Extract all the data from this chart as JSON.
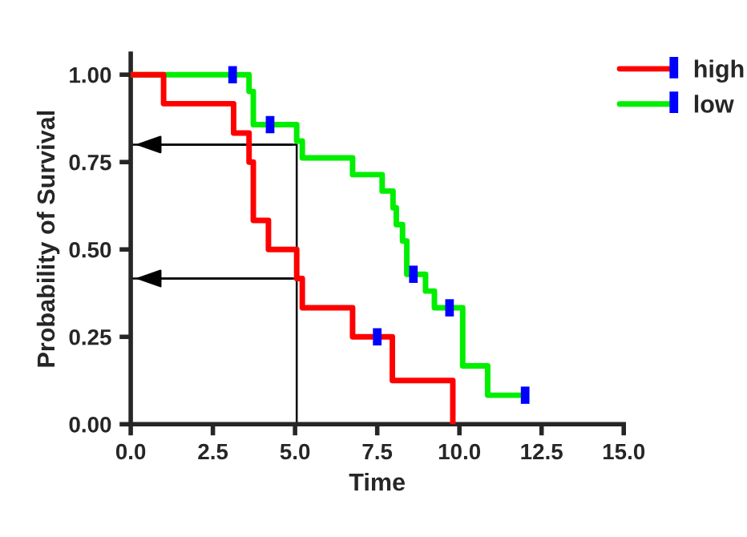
{
  "chart_data": {
    "type": "step",
    "xlabel": "Time",
    "ylabel": "Probability of Survival",
    "xlim": [
      0,
      15
    ],
    "xticks": [
      {
        "value": 0,
        "label": "0.0"
      },
      2.5,
      {
        "value": 5,
        "label": "5.0"
      },
      7.5,
      {
        "value": 10,
        "label": "10.0"
      },
      12.5,
      {
        "value": 15,
        "label": "15.0"
      }
    ],
    "ylim": [
      0,
      1.06
    ],
    "yticks": [
      {
        "value": 0,
        "label": "0.00"
      },
      0.25,
      {
        "value": 0.5,
        "label": "0.50"
      },
      0.75,
      {
        "value": 1,
        "label": "1.00"
      }
    ],
    "grid": false,
    "legend": "top right",
    "series": [
      {
        "name": "high",
        "color": "#ff0000",
        "x": [
          0,
          1,
          3.13,
          3.6,
          3.73,
          4.19,
          5.05,
          5.22,
          6.75,
          7.96,
          9.8
        ],
        "values": [
          1,
          0.917,
          0.833,
          0.75,
          0.583,
          0.5,
          0.417,
          0.333,
          0.25,
          0.125,
          0
        ]
      },
      {
        "name": "low",
        "color": "#00ee00",
        "x": [
          0,
          3.6,
          3.73,
          5.05,
          5.22,
          6.75,
          7.65,
          7.98,
          8.08,
          8.27,
          8.4,
          8.97,
          9.24,
          10.1,
          10.86,
          12.0
        ],
        "values": [
          1,
          0.952,
          0.857,
          0.81,
          0.762,
          0.714,
          0.667,
          0.619,
          0.571,
          0.524,
          0.429,
          0.381,
          0.333,
          0.167,
          0.083,
          0.083
        ]
      },
      {
        "type": "scatter",
        "color": "#0000ff",
        "x": [
          3.1,
          4.24,
          7.5,
          8.6,
          9.7,
          12.0
        ],
        "values": [
          1.0,
          0.857,
          0.25,
          0.429,
          0.333,
          0.083
        ]
      },
      {
        "type": "line",
        "color": "#000000",
        "x": [
          5.05,
          5.05,
          0
        ],
        "values": [
          0,
          0.8,
          0.8
        ]
      },
      {
        "type": "line",
        "color": "#000000",
        "x": [
          5.05,
          0
        ],
        "values": [
          0.417,
          0.417
        ]
      }
    ]
  }
}
